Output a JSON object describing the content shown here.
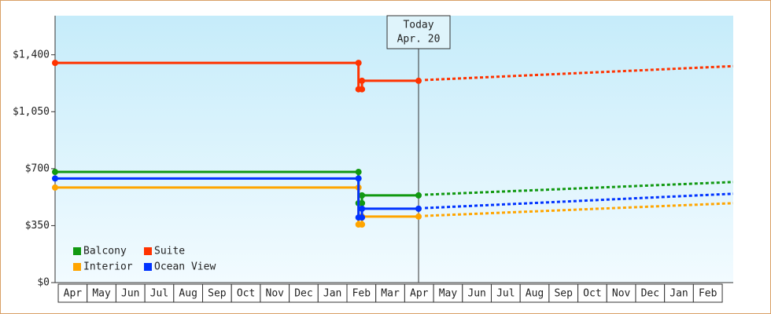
{
  "chart_data": {
    "type": "line",
    "categories": [
      "Apr",
      "May",
      "Jun",
      "Jul",
      "Aug",
      "Sep",
      "Oct",
      "Nov",
      "Dec",
      "Jan",
      "Feb",
      "Mar",
      "Apr",
      "May",
      "Jun",
      "Jul",
      "Aug",
      "Sep",
      "Oct",
      "Nov",
      "Dec",
      "Jan",
      "Feb"
    ],
    "xlim": [
      -0.11,
      23.38
    ],
    "ylim": [
      0,
      1640
    ],
    "yticks": [
      {
        "value": 0,
        "label": "$0"
      },
      {
        "value": 350,
        "label": "$350"
      },
      {
        "value": 700,
        "label": "$700"
      },
      {
        "value": 1050,
        "label": "$1,050"
      },
      {
        "value": 1400,
        "label": "$1,400"
      }
    ],
    "annotation": {
      "lines": [
        "Today",
        "Apr. 20"
      ],
      "x": 12.48
    },
    "series": [
      {
        "name": "Balcony",
        "color": "#119911",
        "x": [
          -0.11,
          10.4,
          10.4,
          10.52,
          10.52,
          12.48
        ],
        "values": [
          680,
          680,
          488,
          488,
          536,
          536
        ],
        "projection": {
          "x": [
            12.7,
            23.38
          ],
          "values": [
            540,
            618
          ]
        }
      },
      {
        "name": "Suite",
        "color": "#ff3300",
        "x": [
          -0.11,
          10.4,
          10.4,
          10.52,
          10.52,
          12.48
        ],
        "values": [
          1350,
          1350,
          1188,
          1188,
          1240,
          1240
        ],
        "projection": {
          "x": [
            12.7,
            23.38
          ],
          "values": [
            1245,
            1330
          ]
        }
      },
      {
        "name": "Interior",
        "color": "#ffa500",
        "x": [
          -0.11,
          10.4,
          10.4,
          10.52,
          10.52,
          12.48
        ],
        "values": [
          584,
          584,
          357,
          357,
          406,
          406
        ],
        "projection": {
          "x": [
            12.7,
            23.38
          ],
          "values": [
            410,
            488
          ]
        }
      },
      {
        "name": "Ocean View",
        "color": "#0033ff",
        "x": [
          -0.11,
          10.4,
          10.4,
          10.52,
          10.52,
          12.48
        ],
        "values": [
          640,
          640,
          400,
          400,
          454,
          454
        ],
        "projection": {
          "x": [
            12.7,
            23.38
          ],
          "values": [
            458,
            546
          ]
        }
      }
    ]
  }
}
